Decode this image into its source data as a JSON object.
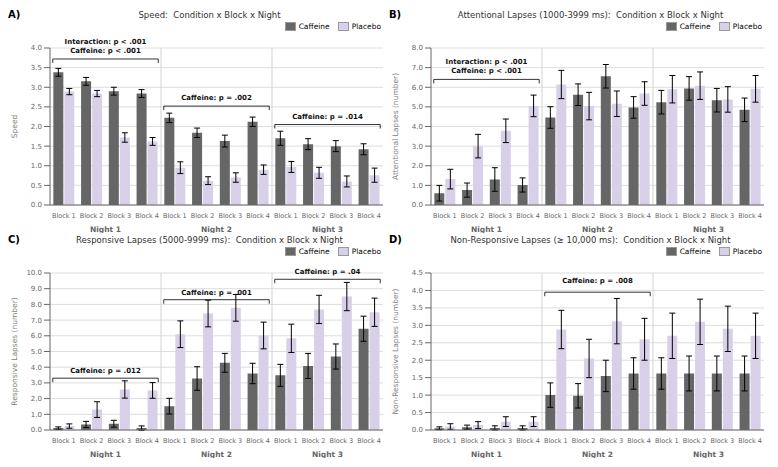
{
  "chart_data": [
    {
      "type": "bar",
      "panel_label": "A)",
      "title": "Speed:  Condition x Block x Night",
      "ylabel": "Speed",
      "categories": [
        "Block 1",
        "Block 2",
        "Block 3",
        "Block 4",
        "Block 1",
        "Block 2",
        "Block 3",
        "Block 4",
        "Block 1",
        "Block 2",
        "Block 3",
        "Block 4"
      ],
      "category_groups": [
        "Night 1",
        "Night 2",
        "Night 3"
      ],
      "series": [
        {
          "name": "Caffeine",
          "color": "#666666",
          "values": [
            3.38,
            3.15,
            2.9,
            2.84,
            2.22,
            1.84,
            1.63,
            2.12,
            1.7,
            1.55,
            1.5,
            1.42
          ],
          "errors": [
            0.1,
            0.1,
            0.1,
            0.1,
            0.12,
            0.12,
            0.15,
            0.12,
            0.18,
            0.14,
            0.14,
            0.14
          ]
        },
        {
          "name": "Placebo",
          "color": "#d8d0e8",
          "values": [
            2.89,
            2.84,
            1.72,
            1.62,
            0.95,
            0.62,
            0.7,
            0.9,
            0.97,
            0.82,
            0.6,
            0.76
          ],
          "errors": [
            0.08,
            0.08,
            0.12,
            0.1,
            0.15,
            0.1,
            0.12,
            0.12,
            0.14,
            0.14,
            0.14,
            0.18
          ]
        }
      ],
      "ylim": [
        0.0,
        4.0
      ],
      "yticks": [
        {
          "value": 0,
          "label": "0.0"
        },
        0.5,
        {
          "value": 1,
          "label": "1.0"
        },
        1.5,
        {
          "value": 2,
          "label": "2.0"
        },
        2.5,
        {
          "value": 3,
          "label": "3.0"
        },
        3.5,
        {
          "value": 4,
          "label": "4.0"
        }
      ],
      "grid": true,
      "legend": "upper right",
      "annotations": [
        {
          "text": "Interaction: p < .001\nCaffeine: p < .001",
          "group": "Night 1",
          "y": 3.82,
          "bracket_y": 3.72
        },
        {
          "text": "Caffeine: p = .002",
          "group": "Night 2",
          "y": 2.62,
          "bracket_y": 2.52
        },
        {
          "text": "Caffeine: p = .014",
          "group": "Night 3",
          "y": 2.15,
          "bracket_y": 2.05
        }
      ]
    },
    {
      "type": "bar",
      "panel_label": "B)",
      "title": "Attentional Lapses (1000-3999 ms):  Condition x Block x Night",
      "ylabel": "Attentional Lapses (number)",
      "categories": [
        "Block 1",
        "Block 2",
        "Block 3",
        "Block 4",
        "Block 1",
        "Block 2",
        "Block 3",
        "Block 4",
        "Block 1",
        "Block 2",
        "Block 3",
        "Block 4"
      ],
      "category_groups": [
        "Night 1",
        "Night 2",
        "Night 3"
      ],
      "series": [
        {
          "name": "Caffeine",
          "color": "#666666",
          "values": [
            0.6,
            0.76,
            1.3,
            1.02,
            4.46,
            5.62,
            6.56,
            4.97,
            5.24,
            5.94,
            5.34,
            4.85
          ],
          "errors": [
            0.4,
            0.36,
            0.6,
            0.36,
            0.55,
            0.55,
            0.6,
            0.55,
            0.6,
            0.6,
            0.6,
            0.6
          ]
        },
        {
          "name": "Placebo",
          "color": "#d8d0e8",
          "values": [
            1.32,
            3.0,
            3.78,
            5.05,
            6.14,
            5.04,
            5.16,
            5.68,
            5.9,
            6.08,
            5.38,
            5.92
          ],
          "errors": [
            0.5,
            0.6,
            0.6,
            0.55,
            0.72,
            0.7,
            0.65,
            0.6,
            0.7,
            0.7,
            0.65,
            0.68
          ]
        }
      ],
      "ylim": [
        0.0,
        8.0
      ],
      "yticks": [
        {
          "value": 0,
          "label": "0.0"
        },
        {
          "value": 1,
          "label": "1.0"
        },
        {
          "value": 2,
          "label": "2.0"
        },
        {
          "value": 3,
          "label": "3.0"
        },
        {
          "value": 4,
          "label": "4.0"
        },
        {
          "value": 5,
          "label": "5.0"
        },
        {
          "value": 6,
          "label": "6.0"
        },
        {
          "value": 7,
          "label": "7.0"
        },
        {
          "value": 8,
          "label": "8.0"
        }
      ],
      "grid": true,
      "legend": "upper right",
      "annotations": [
        {
          "text": "Interaction: p < .001\nCaffeine: p < .001",
          "group": "Night 1",
          "y": 6.6,
          "bracket_y": 6.4
        }
      ]
    },
    {
      "type": "bar",
      "panel_label": "C)",
      "title": "Responsive Lapses (5000-9999 ms):  Condition x Block x Night",
      "ylabel": "Responsive Lapses (number)",
      "categories": [
        "Block 1",
        "Block 2",
        "Block 3",
        "Block 4",
        "Block 1",
        "Block 2",
        "Block 3",
        "Block 4",
        "Block 1",
        "Block 2",
        "Block 3",
        "Block 4"
      ],
      "category_groups": [
        "Night 1",
        "Night 2",
        "Night 3"
      ],
      "series": [
        {
          "name": "Caffeine",
          "color": "#666666",
          "values": [
            0.12,
            0.35,
            0.4,
            0.12,
            1.52,
            3.28,
            4.28,
            3.6,
            3.48,
            4.08,
            4.68,
            6.45
          ],
          "errors": [
            0.08,
            0.2,
            0.22,
            0.14,
            0.5,
            0.75,
            0.6,
            0.65,
            0.7,
            0.8,
            0.8,
            0.8
          ]
        },
        {
          "name": "Placebo",
          "color": "#d8d0e8",
          "values": [
            0.25,
            1.3,
            2.58,
            2.52,
            6.1,
            7.42,
            7.78,
            6.02,
            5.84,
            7.68,
            8.5,
            7.5
          ],
          "errors": [
            0.14,
            0.5,
            0.55,
            0.5,
            0.85,
            0.85,
            0.85,
            0.85,
            0.9,
            0.9,
            0.9,
            0.9
          ]
        }
      ],
      "ylim": [
        0.0,
        10.0
      ],
      "yticks": [
        {
          "value": 0,
          "label": "0.0"
        },
        {
          "value": 1,
          "label": "1.0"
        },
        {
          "value": 2,
          "label": "2.0"
        },
        {
          "value": 3,
          "label": "3.0"
        },
        {
          "value": 4,
          "label": "4.0"
        },
        {
          "value": 5,
          "label": "5.0"
        },
        {
          "value": 6,
          "label": "6.0"
        },
        {
          "value": 7,
          "label": "7.0"
        },
        {
          "value": 8,
          "label": "8.0"
        },
        {
          "value": 9,
          "label": "9.0"
        },
        {
          "value": 10,
          "label": "10.0"
        }
      ],
      "grid": true,
      "legend": "upper right",
      "annotations": [
        {
          "text": "Caffeine: p = .012",
          "group": "Night 1",
          "y": 3.5,
          "bracket_y": 3.3
        },
        {
          "text": "Caffeine: p = .001",
          "group": "Night 2",
          "y": 8.5,
          "bracket_y": 8.3
        },
        {
          "text": "Caffeine: p = .04",
          "group": "Night 3",
          "y": 9.8,
          "bracket_y": 9.6
        }
      ]
    },
    {
      "type": "bar",
      "panel_label": "D)",
      "title": "Non-Responsive Lapses (≥ 10,000 ms):  Condition x Block x Night",
      "ylabel": "Non-Responsive Lapses (number)",
      "categories": [
        "Block 1",
        "Block 2",
        "Block 3",
        "Block 4",
        "Block 1",
        "Block 2",
        "Block 3",
        "Block 4",
        "Block 1",
        "Block 2",
        "Block 3",
        "Block 4"
      ],
      "category_groups": [
        "Night 1",
        "Night 2",
        "Night 3"
      ],
      "series": [
        {
          "name": "Caffeine",
          "color": "#666666",
          "values": [
            0.05,
            0.08,
            0.06,
            0.06,
            1.0,
            0.98,
            1.55,
            1.62,
            1.62,
            1.62,
            1.62,
            1.62
          ],
          "errors": [
            0.04,
            0.06,
            0.06,
            0.06,
            0.35,
            0.35,
            0.45,
            0.45,
            0.45,
            0.5,
            0.5,
            0.5
          ]
        },
        {
          "name": "Placebo",
          "color": "#d8d0e8",
          "values": [
            0.1,
            0.14,
            0.24,
            0.24,
            2.88,
            2.05,
            3.12,
            2.6,
            2.7,
            3.1,
            2.9,
            2.7
          ],
          "errors": [
            0.08,
            0.1,
            0.14,
            0.14,
            0.55,
            0.55,
            0.65,
            0.6,
            0.65,
            0.65,
            0.65,
            0.65
          ]
        }
      ],
      "ylim": [
        0.0,
        4.5
      ],
      "yticks": [
        {
          "value": 0,
          "label": "0.0"
        },
        0.5,
        {
          "value": 1,
          "label": "1.0"
        },
        1.5,
        {
          "value": 2,
          "label": "2.0"
        },
        2.5,
        {
          "value": 3,
          "label": "3.0"
        },
        3.5,
        {
          "value": 4,
          "label": "4.0"
        },
        4.5
      ],
      "grid": true,
      "legend": "upper right",
      "annotations": [
        {
          "text": "Caffeine: p = .008",
          "group": "Night 2",
          "y": 4.15,
          "bracket_y": 3.95
        }
      ]
    }
  ]
}
